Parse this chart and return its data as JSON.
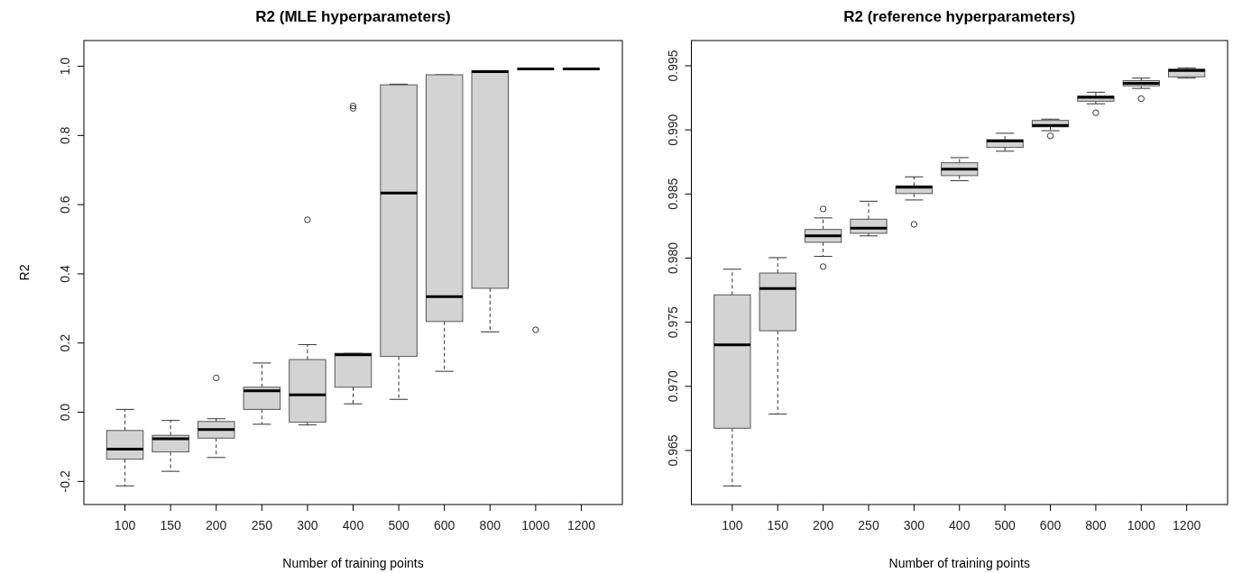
{
  "chart_data": [
    {
      "type": "box",
      "title": "R2 (MLE hyperparameters)",
      "xlabel": "Number of training points",
      "ylabel": "R2",
      "categories": [
        "100",
        "150",
        "200",
        "250",
        "300",
        "400",
        "500",
        "600",
        "800",
        "1000",
        "1200"
      ],
      "ylim": [
        -0.268,
        1.073
      ],
      "yticks": [
        {
          "value": -0.2,
          "label": "-0.2"
        },
        {
          "value": 0,
          "label": "0.0"
        },
        0.2,
        0.4,
        0.6,
        0.8,
        {
          "value": 1,
          "label": "1.0"
        }
      ],
      "series": [
        {
          "color": "#d3d3d3",
          "boxes": [
            {
              "low": -0.214,
              "q1": -0.137,
              "median": -0.108,
              "q3": -0.054,
              "high": 0.007
            },
            {
              "low": -0.172,
              "q1": -0.116,
              "median": -0.078,
              "q3": -0.068,
              "high": -0.025
            },
            {
              "low": -0.132,
              "q1": -0.076,
              "median": -0.051,
              "q3": -0.028,
              "high": -0.02,
              "outliers": [
                0.098
              ]
            },
            {
              "low": -0.036,
              "q1": 0.007,
              "median": 0.061,
              "q3": 0.071,
              "high": 0.141
            },
            {
              "low": -0.038,
              "q1": -0.03,
              "median": 0.049,
              "q3": 0.151,
              "high": 0.194,
              "outliers": [
                0.555
              ]
            },
            {
              "low": 0.023,
              "q1": 0.071,
              "median": 0.165,
              "q3": 0.169,
              "high": 0.169,
              "outliers": [
                0.877,
                0.884
              ]
            },
            {
              "low": 0.036,
              "q1": 0.16,
              "median": 0.632,
              "q3": 0.945,
              "high": 0.947
            },
            {
              "low": 0.117,
              "q1": 0.261,
              "median": 0.333,
              "q3": 0.974,
              "high": 0.974
            },
            {
              "low": 0.231,
              "q1": 0.357,
              "median": 0.983,
              "q3": 0.986,
              "high": 0.986
            },
            {
              "low": 0.99,
              "q1": 0.99,
              "median": 0.991,
              "q3": 0.991,
              "high": 0.991,
              "outliers": [
                0.237
              ]
            },
            {
              "low": 0.99,
              "q1": 0.99,
              "median": 0.991,
              "q3": 0.991,
              "high": 0.991
            }
          ]
        }
      ]
    },
    {
      "type": "box",
      "title": "R2 (reference hyperparameters)",
      "xlabel": "Number of training points",
      "categories": [
        "100",
        "150",
        "200",
        "250",
        "300",
        "400",
        "500",
        "600",
        "800",
        "1000",
        "1200"
      ],
      "ylim": [
        0.96075,
        0.99693
      ],
      "yticks": [
        0.965,
        {
          "value": 0.97,
          "label": "0.970"
        },
        0.975,
        {
          "value": 0.98,
          "label": "0.980"
        },
        0.985,
        {
          "value": 0.99,
          "label": "0.990"
        },
        0.995
      ],
      "series": [
        {
          "color": "#d3d3d3",
          "boxes": [
            {
              "low": 0.9622,
              "q1": 0.9667,
              "median": 0.9732,
              "q3": 0.9771,
              "high": 0.9791
            },
            {
              "low": 0.9678,
              "q1": 0.9743,
              "median": 0.9776,
              "q3": 0.9788,
              "high": 0.98
            },
            {
              "low": 0.9801,
              "q1": 0.9812,
              "median": 0.9817,
              "q3": 0.9822,
              "high": 0.9831,
              "outliers": [
                0.9838,
                0.9793
              ]
            },
            {
              "low": 0.9817,
              "q1": 0.9819,
              "median": 0.9823,
              "q3": 0.983,
              "high": 0.9844
            },
            {
              "low": 0.9845,
              "q1": 0.985,
              "median": 0.9855,
              "q3": 0.9856,
              "high": 0.9863,
              "outliers": [
                0.9826
              ]
            },
            {
              "low": 0.986,
              "q1": 0.9864,
              "median": 0.9869,
              "q3": 0.9874,
              "high": 0.9878
            },
            {
              "low": 0.9883,
              "q1": 0.9886,
              "median": 0.9891,
              "q3": 0.9892,
              "high": 0.9897
            },
            {
              "low": 0.9899,
              "q1": 0.9902,
              "median": 0.9903,
              "q3": 0.9907,
              "high": 0.9908,
              "outliers": [
                0.9895
              ]
            },
            {
              "low": 0.992,
              "q1": 0.9922,
              "median": 0.9925,
              "q3": 0.9926,
              "high": 0.9929,
              "outliers": [
                0.9913
              ]
            },
            {
              "low": 0.9932,
              "q1": 0.9934,
              "median": 0.9936,
              "q3": 0.9938,
              "high": 0.994,
              "outliers": [
                0.9924
              ]
            },
            {
              "low": 0.994,
              "q1": 0.9941,
              "median": 0.9946,
              "q3": 0.9947,
              "high": 0.9948
            }
          ]
        }
      ]
    }
  ]
}
